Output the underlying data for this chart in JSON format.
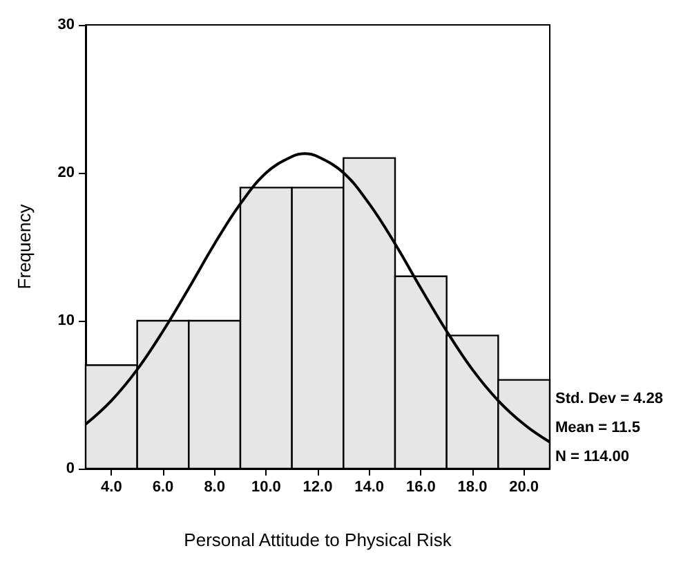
{
  "chart_data": {
    "type": "histogram",
    "xlabel": "Personal Attitude to Physical Risk",
    "ylabel": "Frequency",
    "bins": [
      3,
      5,
      7,
      9,
      11,
      13,
      15,
      17,
      19,
      21
    ],
    "values": [
      7,
      10,
      10,
      19,
      19,
      21,
      13,
      9,
      6
    ],
    "color": "#e6e6e6",
    "series": [
      {
        "type": "line",
        "color": "#000000",
        "x": [
          3,
          4,
          5,
          6,
          7,
          8,
          9,
          10,
          11,
          11.5,
          12,
          13,
          14,
          15,
          16,
          17,
          18,
          19,
          20,
          21
        ],
        "values": [
          3.0,
          4.6,
          6.7,
          9.3,
          12.2,
          15.2,
          17.9,
          20.0,
          21.1,
          21.3,
          21.1,
          20.0,
          17.9,
          15.2,
          12.2,
          9.3,
          6.7,
          4.6,
          3.0,
          1.8
        ]
      }
    ],
    "xlim": [
      3,
      21
    ],
    "xticks": [
      {
        "value": 4,
        "label": "4.0"
      },
      {
        "value": 6,
        "label": "6.0"
      },
      {
        "value": 8,
        "label": "8.0"
      },
      {
        "value": 10,
        "label": "10.0"
      },
      {
        "value": 12,
        "label": "12.0"
      },
      {
        "value": 14,
        "label": "14.0"
      },
      {
        "value": 16,
        "label": "16.0"
      },
      {
        "value": 18,
        "label": "18.0"
      },
      {
        "value": 20,
        "label": "20.0"
      }
    ],
    "ylim": [
      0,
      30
    ],
    "yticks": [
      0,
      10,
      20,
      30
    ],
    "grid": false,
    "marker": "none",
    "line_style": "solid",
    "annotations": [
      "Std. Dev = 4.28",
      "Mean = 11.5",
      "N = 114.00"
    ]
  }
}
